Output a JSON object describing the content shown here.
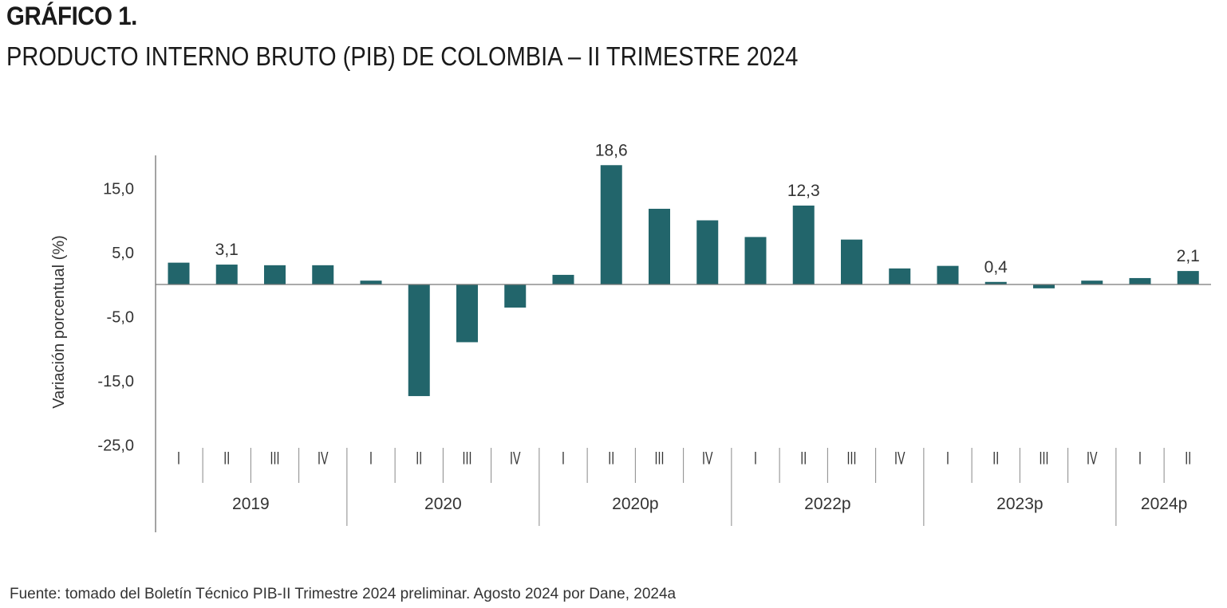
{
  "header": {
    "label": "GRÁFICO 1.",
    "title": "PRODUCTO INTERNO BRUTO (PIB) DE COLOMBIA – II TRIMESTRE 2024"
  },
  "source": "Fuente: tomado del Boletín Técnico PIB-II Trimestre 2024 preliminar. Agosto 2024 por Dane, 2024a",
  "chart_data": {
    "type": "bar",
    "title": "PRODUCTO INTERNO BRUTO (PIB) DE COLOMBIA – II TRIMESTRE 2024",
    "ylabel": "Variación porcentual (%)",
    "ylim": [
      -25,
      20
    ],
    "yticks": [
      15,
      5,
      -5,
      -15,
      -25
    ],
    "ytick_labels": [
      "15,0",
      "5,0",
      "-5,0",
      "-15,0",
      "-25,0"
    ],
    "grid": false,
    "bar_color": "#22656b",
    "groups": [
      {
        "label": "2019",
        "quarters": [
          "I",
          "II",
          "III",
          "IV"
        ]
      },
      {
        "label": "2020",
        "quarters": [
          "I",
          "II",
          "III",
          "IV"
        ]
      },
      {
        "label": "2020p",
        "quarters": [
          "I",
          "II",
          "III",
          "IV"
        ]
      },
      {
        "label": "2022p",
        "quarters": [
          "I",
          "II",
          "III",
          "IV"
        ]
      },
      {
        "label": "2023p",
        "quarters": [
          "I",
          "II",
          "III",
          "IV"
        ]
      },
      {
        "label": "2024p",
        "quarters": [
          "I",
          "II"
        ]
      }
    ],
    "values": [
      3.4,
      3.1,
      3.0,
      3.0,
      0.6,
      -17.4,
      -9.0,
      -3.6,
      1.5,
      18.6,
      11.8,
      10.0,
      7.4,
      12.3,
      7.0,
      2.5,
      2.9,
      0.4,
      -0.6,
      0.6,
      1.0,
      2.1
    ],
    "data_labels": [
      {
        "index": 1,
        "text": "3,1"
      },
      {
        "index": 9,
        "text": "18,6"
      },
      {
        "index": 13,
        "text": "12,3"
      },
      {
        "index": 17,
        "text": "0,4"
      },
      {
        "index": 21,
        "text": "2,1"
      }
    ]
  }
}
